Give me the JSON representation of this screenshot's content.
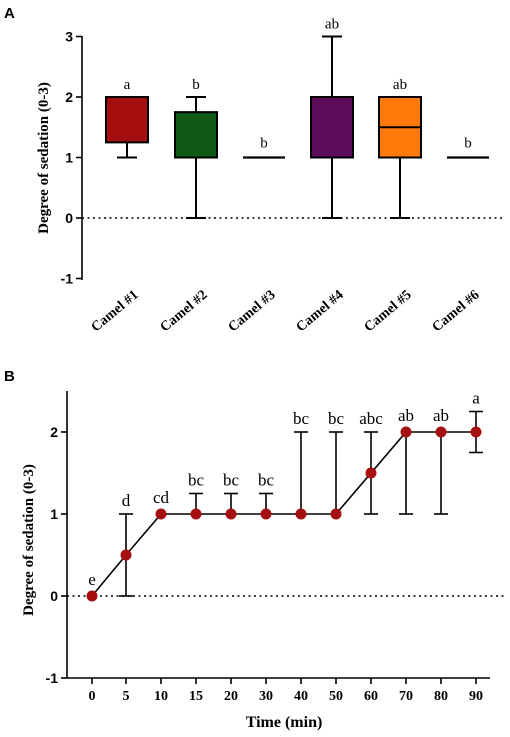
{
  "chart_data": [
    {
      "panel": "A",
      "type": "box",
      "ylabel": "Degree of sedation (0-3)",
      "ylim": [
        -1,
        3
      ],
      "yticks": [
        "-1",
        "0",
        "1",
        "2",
        "3"
      ],
      "reference_line_y": 0,
      "categories": [
        "Camel #1",
        "Camel #2",
        "Camel #3",
        "Camel #4",
        "Camel #5",
        "Camel #6"
      ],
      "boxes": [
        {
          "min": 1,
          "q1": 1.25,
          "median": 2,
          "q3": 2,
          "max": 2,
          "color": "#a50f0f",
          "letter": "a"
        },
        {
          "min": 0,
          "q1": 1,
          "median": 1,
          "q3": 1.75,
          "max": 2,
          "color": "#0f5a14",
          "letter": "b"
        },
        {
          "min": 1,
          "q1": 1,
          "median": 1,
          "q3": 1,
          "max": 1,
          "color": "#000000",
          "letter": "b"
        },
        {
          "min": 0,
          "q1": 1,
          "median": 1,
          "q3": 2,
          "max": 3,
          "color": "#5c0a5a",
          "letter": "ab"
        },
        {
          "min": 0,
          "q1": 1,
          "median": 1.5,
          "q3": 2,
          "max": 2,
          "color": "#ff7a0a",
          "letter": "ab"
        },
        {
          "min": 1,
          "q1": 1,
          "median": 1,
          "q3": 1,
          "max": 1,
          "color": "#000000",
          "letter": "b"
        }
      ]
    },
    {
      "panel": "B",
      "type": "line",
      "xlabel": "Time (min)",
      "ylabel": "Degree of sedation (0-3)",
      "ylim": [
        -1,
        2.5
      ],
      "yticks": [
        "-1",
        "0",
        "1",
        "2"
      ],
      "reference_line_y": 0,
      "point_color": "#a50f0f",
      "x": [
        "0",
        "5",
        "10",
        "15",
        "20",
        "30",
        "40",
        "50",
        "60",
        "70",
        "80",
        "90"
      ],
      "y": [
        0,
        0.5,
        1,
        1,
        1,
        1,
        1,
        1,
        1.5,
        2,
        2,
        2
      ],
      "error_low": [
        0,
        0,
        1,
        1,
        1,
        1,
        1,
        1,
        1,
        1,
        1,
        1.75
      ],
      "error_high": [
        0,
        1,
        1,
        1.25,
        1.25,
        1.25,
        2,
        2,
        2,
        2,
        2,
        2.25
      ],
      "letters": [
        "e",
        "d",
        "cd",
        "bc",
        "bc",
        "bc",
        "bc",
        "bc",
        "abc",
        "ab",
        "ab",
        "a"
      ]
    }
  ]
}
